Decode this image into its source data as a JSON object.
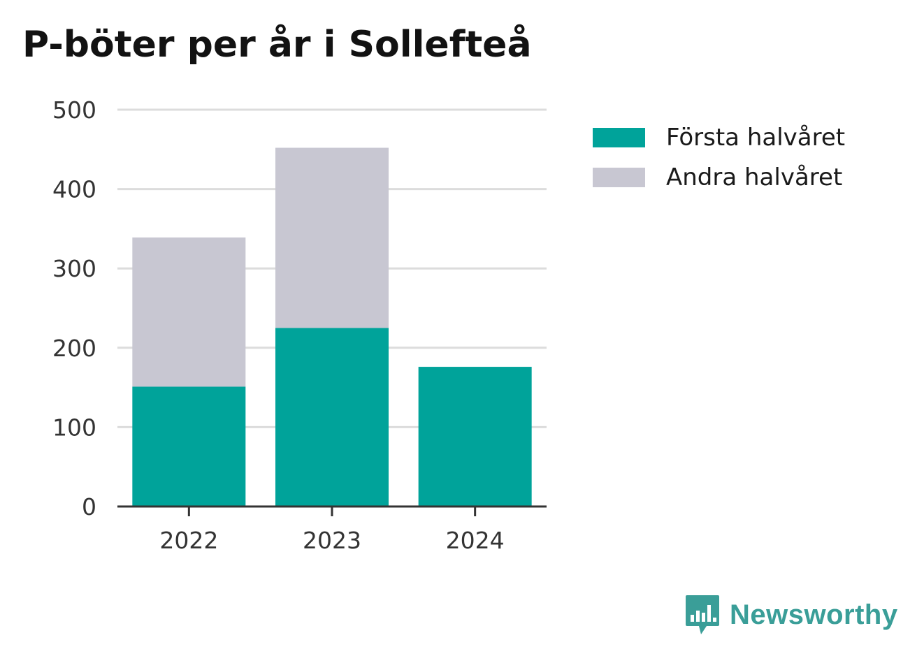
{
  "chart_data": {
    "type": "bar",
    "stacked": true,
    "title": "P-böter per år i Sollefteå",
    "xlabel": "",
    "ylabel": "",
    "categories": [
      "2022",
      "2023",
      "2024"
    ],
    "series": [
      {
        "name": "Första halvåret",
        "color": "#00a39a",
        "values": [
          151,
          225,
          176
        ]
      },
      {
        "name": "Andra halvåret",
        "color": "#c8c7d2",
        "values": [
          188,
          227,
          0
        ]
      }
    ],
    "ylim": [
      0,
      500
    ],
    "yticks": [
      0,
      100,
      200,
      300,
      400,
      500
    ],
    "grid": true,
    "legend_position": "right"
  },
  "brand": {
    "name": "Newsworthy",
    "icon": "newsworthy-logo-icon",
    "color": "#3a9e98"
  }
}
